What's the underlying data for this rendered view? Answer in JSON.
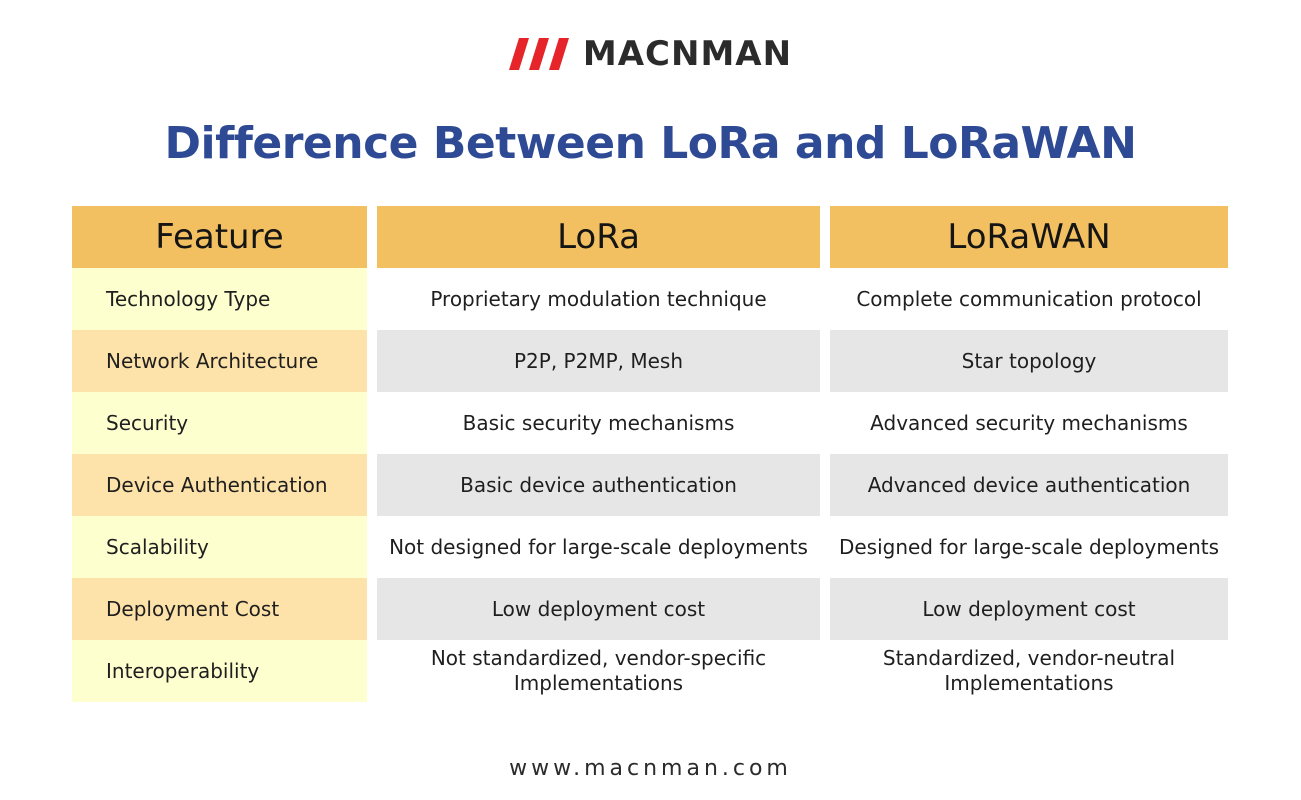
{
  "brand": {
    "name": "MACNMAN",
    "mark_color": "#e5252a"
  },
  "title": "Difference Between LoRa and LoRaWAN",
  "table": {
    "headers": [
      "Feature",
      "LoRa",
      "LoRaWAN"
    ],
    "rows": [
      {
        "feature": "Technology Type",
        "lora": "Proprietary modulation technique",
        "lorawan": "Complete communication protocol"
      },
      {
        "feature": "Network Architecture",
        "lora": "P2P, P2MP, Mesh",
        "lorawan": "Star topology"
      },
      {
        "feature": "Security",
        "lora": "Basic security mechanisms",
        "lorawan": "Advanced security mechanisms"
      },
      {
        "feature": "Device Authentication",
        "lora": "Basic device authentication",
        "lorawan": "Advanced device authentication"
      },
      {
        "feature": "Scalability",
        "lora": "Not designed for large-scale deployments",
        "lorawan": "Designed for large-scale deployments"
      },
      {
        "feature": "Deployment Cost",
        "lora": "Low deployment cost",
        "lorawan": "Low deployment cost"
      },
      {
        "feature": "Interoperability",
        "lora": "Not standardized, vendor-specific Implementations",
        "lorawan": "Standardized, vendor-neutral Implementations"
      }
    ]
  },
  "footer": {
    "url": "www.macnman.com"
  },
  "colors": {
    "title": "#2e4a94",
    "header_bg": "#f2c061",
    "feature_odd_bg": "#feffcf",
    "feature_even_bg": "#fde2a9",
    "value_even_bg": "#e6e6e6"
  }
}
